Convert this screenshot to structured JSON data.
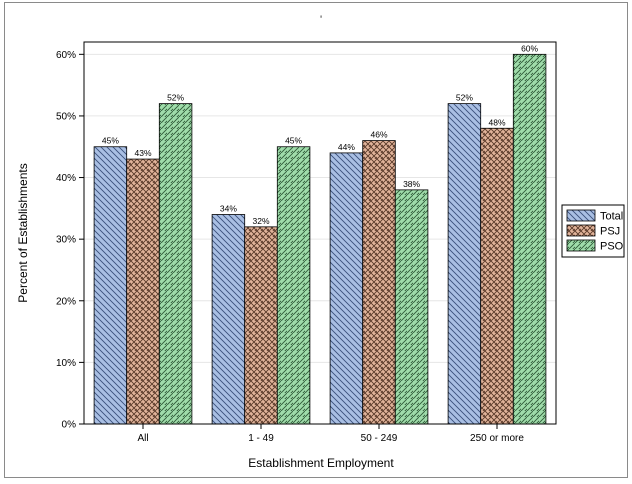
{
  "chart_data": {
    "type": "bar",
    "title": "'",
    "xlabel": "Establishment Employment",
    "ylabel": "Percent of Establishments",
    "categories": [
      "All",
      "1 - 49",
      "50 - 249",
      "250 or more"
    ],
    "series": [
      {
        "name": "Total",
        "values": [
          45,
          34,
          44,
          52
        ],
        "labels": [
          "45%",
          "34%",
          "44%",
          "52%"
        ],
        "fill": "#a9bfe3",
        "stroke": "#3a4f7a",
        "pattern": "diag-right"
      },
      {
        "name": "PSJ",
        "values": [
          43,
          32,
          46,
          48
        ],
        "labels": [
          "43%",
          "32%",
          "46%",
          "48%"
        ],
        "fill": "#e2b49b",
        "stroke": "#5a3a2a",
        "pattern": "crosshatch"
      },
      {
        "name": "PSO",
        "values": [
          52,
          45,
          38,
          60
        ],
        "labels": [
          "52%",
          "45%",
          "38%",
          "60%"
        ],
        "fill": "#9fdcaa",
        "stroke": "#2f5a38",
        "pattern": "diag-left"
      }
    ],
    "ylim": [
      0,
      62
    ],
    "yticks": [
      0,
      10,
      20,
      30,
      40,
      50,
      60
    ],
    "ytick_labels": [
      "0%",
      "10%",
      "20%",
      "30%",
      "40%",
      "50%",
      "60%"
    ],
    "grid": true,
    "legend_position": "right"
  }
}
